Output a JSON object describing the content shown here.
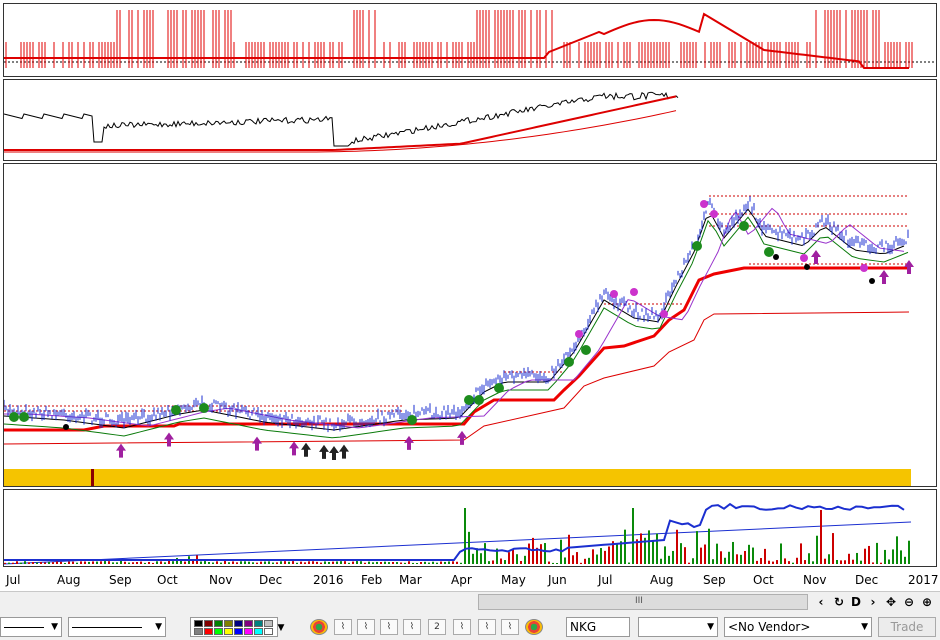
{
  "axis": {
    "months": [
      "Jul",
      "Aug",
      "Sep",
      "Oct",
      "Nov",
      "Dec",
      "2016",
      "Feb",
      "Mar",
      "Apr",
      "May",
      "Jun",
      "Jul",
      "Aug",
      "Sep",
      "Oct",
      "Nov",
      "Dec",
      "2017"
    ]
  },
  "toolbar": {
    "symbol": "NKG",
    "vendor": "<No Vendor>",
    "trade_label": "Trade",
    "scroll_grip": "III",
    "nav": {
      "back": "‹",
      "forward": "›",
      "d_label": "D"
    },
    "colors": [
      "#000000",
      "#800000",
      "#008000",
      "#808000",
      "#000080",
      "#800080",
      "#008080",
      "#c0c0c0",
      "#808080",
      "#ff0000",
      "#00ff00",
      "#ffff00",
      "#0000ff",
      "#ff00ff",
      "#00ffff",
      "#ffffff"
    ]
  }
}
